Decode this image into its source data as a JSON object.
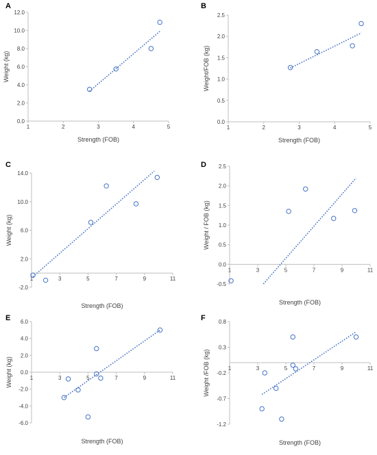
{
  "colors": {
    "marker": "#4472C4",
    "axis": "#bfbfbf",
    "text": "#404040"
  },
  "chart_data": [
    {
      "panel": "A",
      "type": "scatter",
      "xlabel": "Strength (FOB)",
      "ylabel": "Weight (kg)",
      "xlim": [
        1,
        5
      ],
      "ylim": [
        0,
        12
      ],
      "xticks": [
        1,
        2,
        3,
        4,
        5
      ],
      "xtick_labels": [
        "1",
        "2",
        "3",
        "4",
        "5"
      ],
      "yticks": [
        0,
        2,
        4,
        6,
        8,
        10,
        12
      ],
      "ytick_labels": [
        "0.0",
        "2.0",
        "4.0",
        "6.0",
        "8.0",
        "10.0",
        "12.0"
      ],
      "points": [
        [
          2.75,
          3.5
        ],
        [
          3.5,
          5.75
        ],
        [
          4.5,
          8.0
        ],
        [
          4.75,
          10.9
        ]
      ],
      "trendline": [
        [
          2.75,
          3.3
        ],
        [
          4.75,
          9.9
        ]
      ]
    },
    {
      "panel": "B",
      "type": "scatter",
      "xlabel": "Strength (FOB)",
      "ylabel": "Weight/FOB (kg)",
      "xlim": [
        1,
        5
      ],
      "ylim": [
        0,
        2.5
      ],
      "xticks": [
        1,
        2,
        3,
        4,
        5
      ],
      "xtick_labels": [
        "1",
        "2",
        "3",
        "4",
        "5"
      ],
      "yticks": [
        0,
        0.5,
        1,
        1.5,
        2,
        2.5
      ],
      "ytick_labels": [
        "0.0",
        "0.5",
        "1.0",
        "1.5",
        "2.0",
        "2.5"
      ],
      "points": [
        [
          2.75,
          1.27
        ],
        [
          3.5,
          1.64
        ],
        [
          4.5,
          1.78
        ],
        [
          4.75,
          2.3
        ]
      ],
      "trendline": [
        [
          2.75,
          1.26
        ],
        [
          4.75,
          2.08
        ]
      ]
    },
    {
      "panel": "C",
      "type": "scatter",
      "xlabel": "Strength (FOB)",
      "ylabel": "Weight (kg)",
      "xlim": [
        1,
        11
      ],
      "ylim": [
        -2,
        14
      ],
      "xticks": [
        1,
        3,
        5,
        7,
        9,
        11
      ],
      "xtick_labels": [
        "1",
        "3",
        "5",
        "7",
        "9",
        "11"
      ],
      "yticks": [
        -2,
        2,
        6,
        10,
        14
      ],
      "ytick_labels": [
        "-2.0",
        "2.0",
        "6.0",
        "10.0",
        "14.0"
      ],
      "points": [
        [
          1.1,
          -0.3
        ],
        [
          2.0,
          -1.0
        ],
        [
          5.2,
          7.1
        ],
        [
          6.3,
          12.2
        ],
        [
          8.4,
          9.7
        ],
        [
          9.9,
          13.4
        ]
      ],
      "trendline": [
        [
          1.1,
          -0.5
        ],
        [
          9.7,
          14.3
        ]
      ]
    },
    {
      "panel": "D",
      "type": "scatter",
      "xlabel": "Strength (FOB)",
      "ylabel": "Weight / FOB (kg)",
      "xlim": [
        1,
        11
      ],
      "ylim": [
        -0.5,
        2.5
      ],
      "xticks": [
        1,
        3,
        5,
        7,
        9,
        11
      ],
      "xtick_labels": [
        "1",
        "3",
        "5",
        "7",
        "9",
        "11"
      ],
      "yticks": [
        -0.5,
        0,
        0.5,
        1,
        1.5,
        2,
        2.5
      ],
      "ytick_labels": [
        "-0.5",
        "0.0",
        "0.5",
        "1.0",
        "1.5",
        "2.0",
        "2.5"
      ],
      "points": [
        [
          1.1,
          -0.42
        ],
        [
          5.2,
          1.35
        ],
        [
          6.4,
          1.92
        ],
        [
          8.4,
          1.17
        ],
        [
          9.9,
          1.37
        ]
      ],
      "trendline": [
        [
          3.4,
          -0.5
        ],
        [
          10.0,
          2.2
        ]
      ]
    },
    {
      "panel": "E",
      "type": "scatter",
      "xlabel": "Strength (FOB)",
      "ylabel": "Weight (kg)",
      "xlim": [
        1,
        11
      ],
      "ylim": [
        -6,
        6
      ],
      "xticks": [
        1,
        3,
        5,
        7,
        9,
        11
      ],
      "xtick_labels": [
        "1",
        "3",
        "5",
        "7",
        "9",
        "11"
      ],
      "yticks": [
        -6,
        -4,
        -2,
        0,
        2,
        4,
        6
      ],
      "ytick_labels": [
        "-6.0",
        "-4.0",
        "-2.0",
        "0.0",
        "2.0",
        "4.0",
        "6.0"
      ],
      "points": [
        [
          3.3,
          -3.0
        ],
        [
          3.6,
          -0.8
        ],
        [
          4.3,
          -2.1
        ],
        [
          5.0,
          -5.3
        ],
        [
          5.6,
          -0.2
        ],
        [
          5.6,
          2.8
        ],
        [
          5.9,
          -0.7
        ],
        [
          10.1,
          5.0
        ]
      ],
      "trendline": [
        [
          3.3,
          -3.0
        ],
        [
          10.1,
          5.0
        ]
      ]
    },
    {
      "panel": "F",
      "type": "scatter",
      "xlabel": "Strength (FOB)",
      "ylabel": "Weight /FOB (kg)",
      "xlim": [
        1,
        11
      ],
      "ylim": [
        -1.2,
        0.8
      ],
      "xticks": [
        1,
        3,
        5,
        7,
        9,
        11
      ],
      "xtick_labels": [
        "1",
        "3",
        "5",
        "7",
        "9",
        "11"
      ],
      "yticks": [
        -1.2,
        -0.7,
        -0.2,
        0.3,
        0.8
      ],
      "ytick_labels": [
        "-1.2",
        "-0.7",
        "-0.2",
        "0.3",
        "0.8"
      ],
      "points": [
        [
          3.3,
          -0.9
        ],
        [
          3.5,
          -0.2
        ],
        [
          4.3,
          -0.5
        ],
        [
          4.7,
          -1.1
        ],
        [
          5.5,
          -0.05
        ],
        [
          5.5,
          0.5
        ],
        [
          5.7,
          -0.12
        ],
        [
          10.0,
          0.5
        ]
      ],
      "trendline": [
        [
          3.3,
          -0.62
        ],
        [
          10.0,
          0.6
        ]
      ]
    }
  ]
}
